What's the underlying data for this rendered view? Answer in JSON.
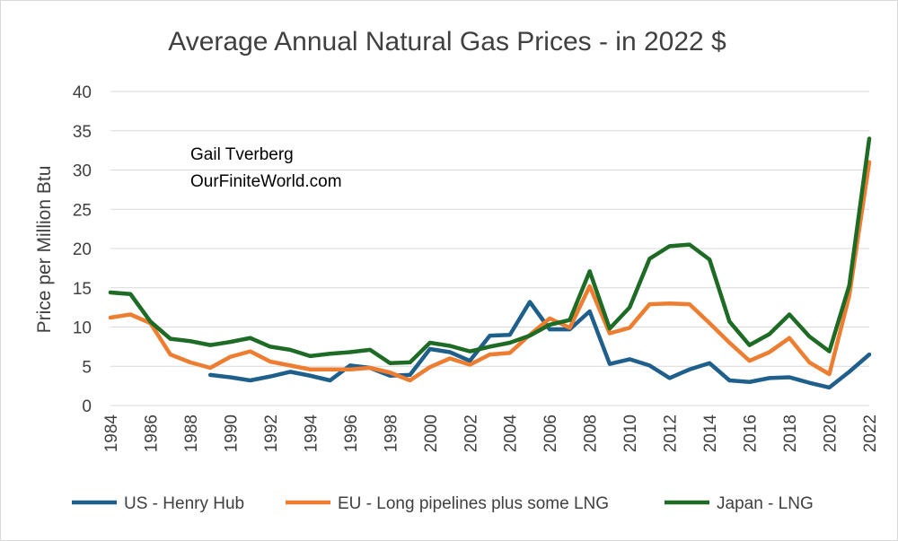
{
  "chart_data": {
    "type": "line",
    "title": "Average Annual Natural Gas Prices - in 2022 $",
    "xlabel": "",
    "ylabel": "Price per Million Btu",
    "ylim": [
      0,
      40
    ],
    "yticks": [
      "0",
      "5",
      "10",
      "15",
      "20",
      "25",
      "30",
      "35",
      "40"
    ],
    "xticks": [
      "1984",
      "1986",
      "1988",
      "1990",
      "1992",
      "1994",
      "1996",
      "1998",
      "2000",
      "2002",
      "2004",
      "2006",
      "2008",
      "2010",
      "2012",
      "2014",
      "2016",
      "2018",
      "2020",
      "2022"
    ],
    "grid": true,
    "legend_position": "bottom",
    "annotations": [
      "Gail Tverberg",
      "OurFiniteWorld.com"
    ],
    "x": [
      1984,
      1985,
      1986,
      1987,
      1988,
      1989,
      1990,
      1991,
      1992,
      1993,
      1994,
      1995,
      1996,
      1997,
      1998,
      1999,
      2000,
      2001,
      2002,
      2003,
      2004,
      2005,
      2006,
      2007,
      2008,
      2009,
      2010,
      2011,
      2012,
      2013,
      2014,
      2015,
      2016,
      2017,
      2018,
      2019,
      2020,
      2021,
      2022
    ],
    "series": [
      {
        "name": "US - Henry Hub",
        "color": "#1f5f8b",
        "values": [
          null,
          null,
          null,
          null,
          null,
          3.9,
          3.6,
          3.2,
          3.7,
          4.3,
          3.8,
          3.2,
          5.1,
          4.8,
          3.8,
          3.9,
          7.2,
          6.8,
          5.7,
          8.9,
          9.0,
          13.2,
          9.7,
          9.7,
          12.0,
          5.3,
          5.9,
          5.1,
          3.5,
          4.6,
          5.4,
          3.2,
          3.0,
          3.5,
          3.6,
          2.9,
          2.3,
          4.3,
          6.5
        ]
      },
      {
        "name": "EU - Long pipelines plus some LNG",
        "color": "#ed7d31",
        "values": [
          11.2,
          11.6,
          10.5,
          6.5,
          5.5,
          4.8,
          6.2,
          6.9,
          5.6,
          5.1,
          4.6,
          4.6,
          4.6,
          4.8,
          4.2,
          3.2,
          4.9,
          6.0,
          5.2,
          6.5,
          6.7,
          9.0,
          11.1,
          9.9,
          15.2,
          9.2,
          9.9,
          12.9,
          13.0,
          12.9,
          10.5,
          8.0,
          5.7,
          6.8,
          8.6,
          5.5,
          4.0,
          14.0,
          31.0
        ]
      },
      {
        "name": "Japan - LNG",
        "color": "#1e6b26",
        "values": [
          14.4,
          14.2,
          10.7,
          8.5,
          8.2,
          7.7,
          8.1,
          8.6,
          7.5,
          7.1,
          6.3,
          6.6,
          6.8,
          7.1,
          5.4,
          5.5,
          8.0,
          7.6,
          6.9,
          7.5,
          8.0,
          8.9,
          10.3,
          10.9,
          17.1,
          9.8,
          12.5,
          18.7,
          20.3,
          20.5,
          18.6,
          10.7,
          7.7,
          9.1,
          11.6,
          8.8,
          6.9,
          15.3,
          34.0
        ]
      }
    ]
  }
}
